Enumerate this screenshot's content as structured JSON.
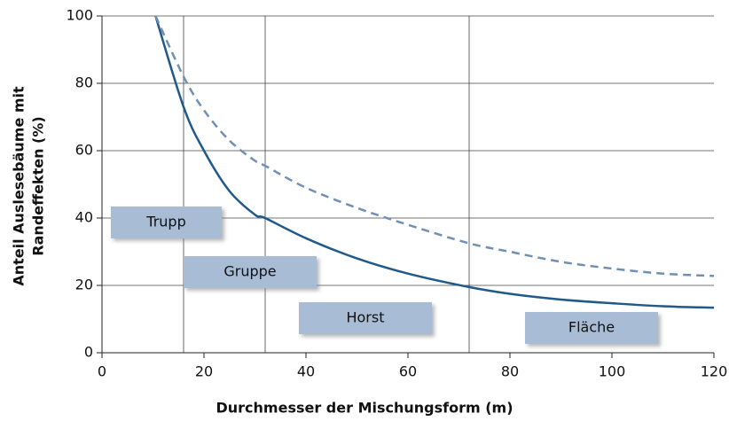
{
  "chart_data": {
    "type": "line",
    "xlabel": "Durchmesser der Mischungsform (m)",
    "ylabel": [
      "Anteil Auslesebäume mit",
      "Randeffekten (%)"
    ],
    "x": [
      10.5,
      16,
      20,
      25,
      30,
      32,
      40,
      50,
      60,
      72,
      80,
      90,
      100,
      110,
      120
    ],
    "series": [
      {
        "color": "#1f5a8a",
        "dash": false,
        "values": [
          100,
          73,
          60,
          48,
          41,
          40,
          34,
          28,
          23.5,
          19.5,
          17.5,
          15.8,
          14.7,
          13.8,
          13.4
        ]
      },
      {
        "color": "#6f8fb5",
        "dash": true,
        "values": [
          100,
          82,
          72,
          63,
          57,
          55.5,
          49,
          43,
          38,
          32.5,
          30,
          27,
          25,
          23.5,
          22.8
        ]
      }
    ],
    "xlim": [
      0,
      120
    ],
    "ylim": [
      0,
      100
    ],
    "xticks": [
      0,
      20,
      40,
      60,
      80,
      100,
      120
    ],
    "yticks": [
      0,
      20,
      40,
      60,
      80,
      100
    ],
    "grid": true,
    "vlines": [
      16,
      32,
      72
    ],
    "annotations": [
      "Trupp",
      "Gruppe",
      "Horst",
      "Fläche"
    ]
  }
}
